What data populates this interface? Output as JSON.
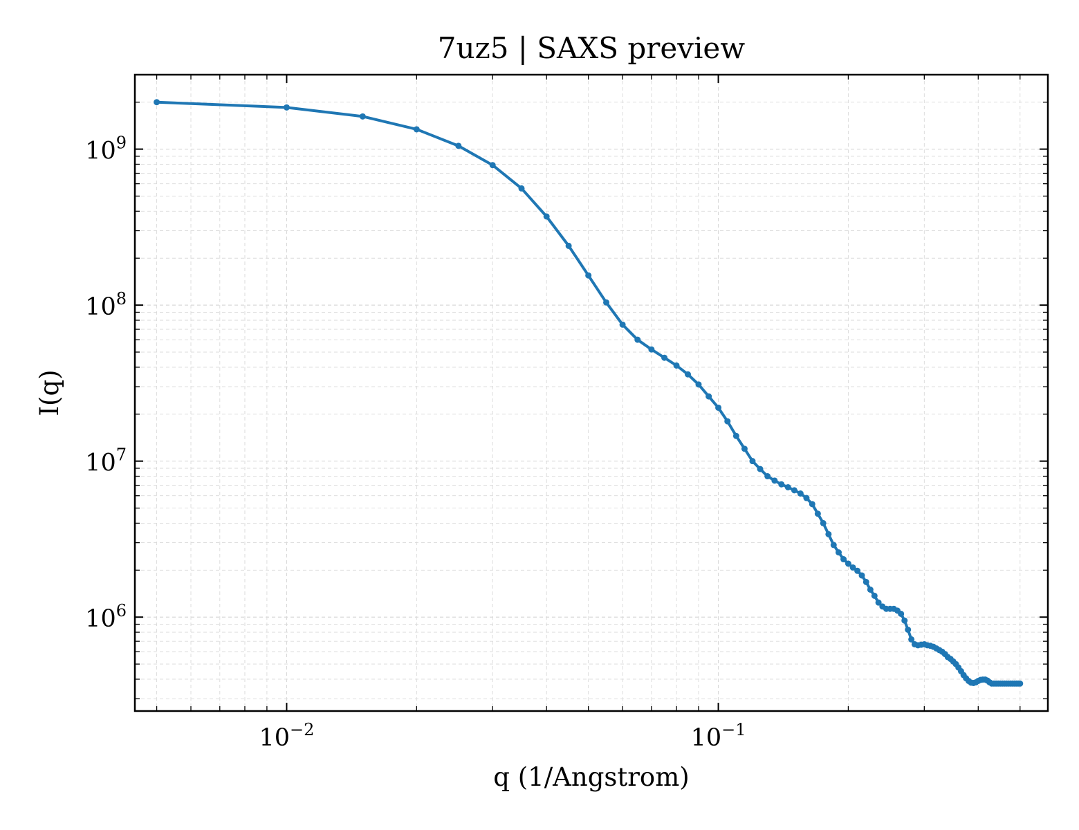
{
  "chart_data": {
    "type": "line",
    "title": "7uz5 | SAXS preview",
    "xlabel": "q (1/Angstrom)",
    "ylabel": "I(q)",
    "xscale": "log",
    "yscale": "log",
    "xlim": [
      0.00445,
      0.58
    ],
    "ylim": [
      250000,
      3000000000
    ],
    "grid": true,
    "legend": "none",
    "colors": {
      "series": "#1f77b4",
      "grid": "#d9d9d9",
      "axes": "#000000"
    },
    "x_ticks": [
      {
        "base": "10",
        "exp": "−2",
        "value": 0.01
      },
      {
        "base": "10",
        "exp": "−1",
        "value": 0.1
      }
    ],
    "y_ticks": [
      {
        "base": "10",
        "exp": "6",
        "value": 1000000
      },
      {
        "base": "10",
        "exp": "7",
        "value": 10000000
      },
      {
        "base": "10",
        "exp": "8",
        "value": 100000000
      },
      {
        "base": "10",
        "exp": "9",
        "value": 1000000000
      }
    ],
    "series": [
      {
        "x": [
          0.005,
          0.01,
          0.015,
          0.02,
          0.025,
          0.03,
          0.035,
          0.04,
          0.045,
          0.05,
          0.055,
          0.06,
          0.065,
          0.07,
          0.075,
          0.08,
          0.085,
          0.09,
          0.095,
          0.1,
          0.105,
          0.11,
          0.115,
          0.12,
          0.125,
          0.13,
          0.135,
          0.14,
          0.145,
          0.15,
          0.155,
          0.16,
          0.165,
          0.17,
          0.175,
          0.18,
          0.185,
          0.19,
          0.195,
          0.2,
          0.205,
          0.21,
          0.215,
          0.22,
          0.225,
          0.23,
          0.235,
          0.24,
          0.245,
          0.25,
          0.255,
          0.26,
          0.265,
          0.27,
          0.275,
          0.28,
          0.285,
          0.29,
          0.295,
          0.3,
          0.305,
          0.31,
          0.315,
          0.32,
          0.325,
          0.33,
          0.335,
          0.34,
          0.345,
          0.35,
          0.355,
          0.36,
          0.365,
          0.37,
          0.375,
          0.38,
          0.385,
          0.39,
          0.395,
          0.4,
          0.405,
          0.41,
          0.415,
          0.42,
          0.425,
          0.43,
          0.435,
          0.44,
          0.445,
          0.45,
          0.455,
          0.46,
          0.465,
          0.47,
          0.475,
          0.48,
          0.485,
          0.49,
          0.495,
          0.5
        ],
        "y": [
          2000000000,
          1850000000,
          1620000000,
          1340000000,
          1050000000,
          790000000,
          560000000,
          370000000,
          240000000,
          155000000,
          104000000,
          75000000,
          60000000,
          52000000,
          46000000,
          41000000,
          36000000,
          31000000,
          26000000,
          22000000,
          18000000,
          14500000,
          12000000,
          10000000,
          8900000,
          8000000,
          7500000,
          7100000,
          6800000,
          6500000,
          6200000,
          5800000,
          5300000,
          4600000,
          4000000,
          3400000,
          2900000,
          2600000,
          2350000,
          2200000,
          2080000,
          1980000,
          1850000,
          1680000,
          1500000,
          1370000,
          1240000,
          1170000,
          1130000,
          1130000,
          1130000,
          1100000,
          1050000,
          950000,
          830000,
          720000,
          670000,
          660000,
          665000,
          670000,
          660000,
          655000,
          645000,
          630000,
          615000,
          600000,
          580000,
          555000,
          540000,
          520000,
          500000,
          475000,
          450000,
          425000,
          405000,
          390000,
          380000,
          378000,
          382000,
          390000,
          396000,
          398000,
          398000,
          392000,
          382000,
          375000,
          375000,
          375000,
          375000,
          375000,
          375000,
          375000,
          375000,
          375000,
          375000,
          375000,
          375000,
          375000,
          375000,
          375000
        ]
      }
    ]
  }
}
